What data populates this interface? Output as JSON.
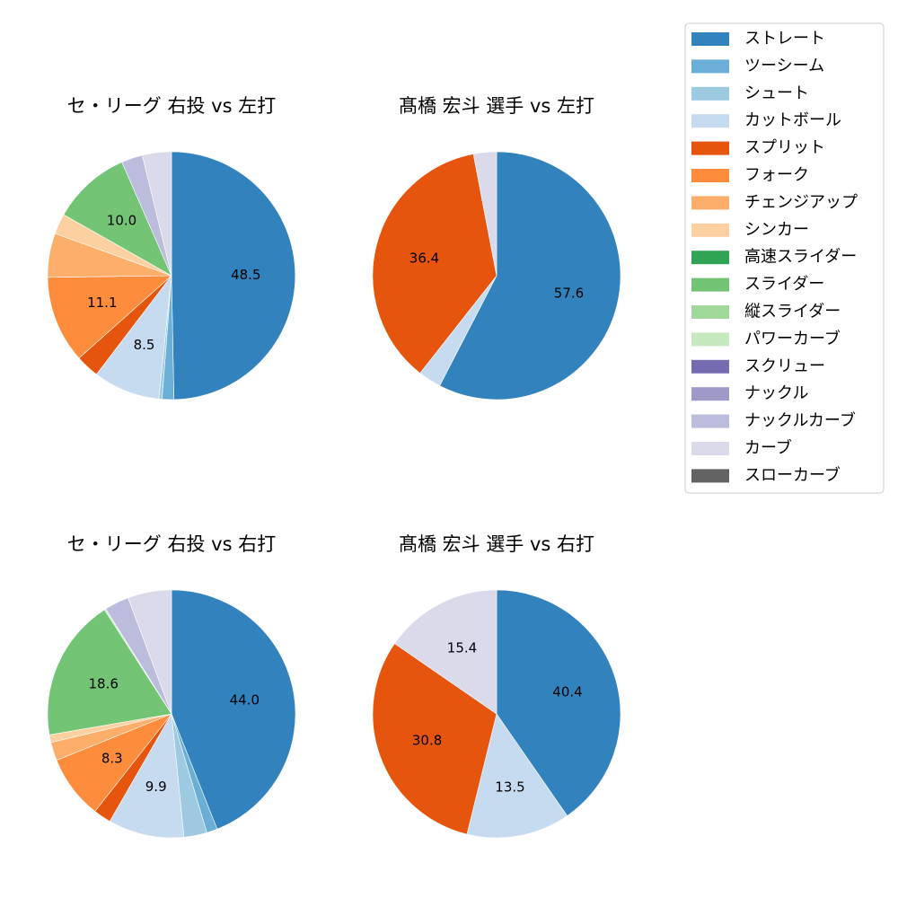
{
  "legend": {
    "items": [
      {
        "label": "ストレート",
        "color": "#3182bd"
      },
      {
        "label": "ツーシーム",
        "color": "#6baed6"
      },
      {
        "label": "シュート",
        "color": "#9ecae1"
      },
      {
        "label": "カットボール",
        "color": "#c6dbef"
      },
      {
        "label": "スプリット",
        "color": "#e6550d"
      },
      {
        "label": "フォーク",
        "color": "#fd8d3c"
      },
      {
        "label": "チェンジアップ",
        "color": "#fdae6b"
      },
      {
        "label": "シンカー",
        "color": "#fdd0a2"
      },
      {
        "label": "高速スライダー",
        "color": "#31a354"
      },
      {
        "label": "スライダー",
        "color": "#74c476"
      },
      {
        "label": "縦スライダー",
        "color": "#a1d99b"
      },
      {
        "label": "パワーカーブ",
        "color": "#c7e9c0"
      },
      {
        "label": "スクリュー",
        "color": "#756bb1"
      },
      {
        "label": "ナックル",
        "color": "#9e9ac8"
      },
      {
        "label": "ナックルカーブ",
        "color": "#bcbddc"
      },
      {
        "label": "カーブ",
        "color": "#dadaeb"
      },
      {
        "label": "スローカーブ",
        "color": "#636363"
      }
    ]
  },
  "chart_data": [
    {
      "type": "pie",
      "title": "セ・リーグ 右投 vs 左打",
      "slices": [
        {
          "label": "ストレート",
          "value": 48.5,
          "shown": "48.5"
        },
        {
          "label": "ツーシーム",
          "value": 1.5
        },
        {
          "label": "シュート",
          "value": 0.4
        },
        {
          "label": "カットボール",
          "value": 8.5,
          "shown": "8.5"
        },
        {
          "label": "スプリット",
          "value": 3.0
        },
        {
          "label": "フォーク",
          "value": 11.1,
          "shown": "11.1"
        },
        {
          "label": "チェンジアップ",
          "value": 5.6
        },
        {
          "label": "シンカー",
          "value": 2.6
        },
        {
          "label": "スライダー",
          "value": 10.0,
          "shown": "10.0"
        },
        {
          "label": "ナックルカーブ",
          "value": 2.7
        },
        {
          "label": "カーブ",
          "value": 3.7
        }
      ]
    },
    {
      "type": "pie",
      "title": "髙橋 宏斗 選手 vs 左打",
      "slices": [
        {
          "label": "ストレート",
          "value": 57.6,
          "shown": "57.6"
        },
        {
          "label": "カットボール",
          "value": 3.0
        },
        {
          "label": "スプリット",
          "value": 36.4,
          "shown": "36.4"
        },
        {
          "label": "カーブ",
          "value": 3.0
        }
      ]
    },
    {
      "type": "pie",
      "title": "セ・リーグ 右投 vs 右打",
      "slices": [
        {
          "label": "ストレート",
          "value": 44.0,
          "shown": "44.0"
        },
        {
          "label": "ツーシーム",
          "value": 1.4
        },
        {
          "label": "シュート",
          "value": 3.0
        },
        {
          "label": "カットボール",
          "value": 9.9,
          "shown": "9.9"
        },
        {
          "label": "スプリット",
          "value": 2.3
        },
        {
          "label": "フォーク",
          "value": 8.3,
          "shown": "8.3"
        },
        {
          "label": "チェンジアップ",
          "value": 2.4
        },
        {
          "label": "シンカー",
          "value": 1.0
        },
        {
          "label": "スライダー",
          "value": 18.6,
          "shown": "18.6"
        },
        {
          "label": "パワーカーブ",
          "value": 0.2
        },
        {
          "label": "ナックルカーブ",
          "value": 3.2
        },
        {
          "label": "カーブ",
          "value": 5.7
        }
      ]
    },
    {
      "type": "pie",
      "title": "髙橋 宏斗 選手 vs 右打",
      "slices": [
        {
          "label": "ストレート",
          "value": 40.4,
          "shown": "40.4"
        },
        {
          "label": "カットボール",
          "value": 13.5,
          "shown": "13.5"
        },
        {
          "label": "スプリット",
          "value": 30.8,
          "shown": "30.8"
        },
        {
          "label": "カーブ",
          "value": 15.4,
          "shown": "15.4"
        }
      ]
    }
  ]
}
